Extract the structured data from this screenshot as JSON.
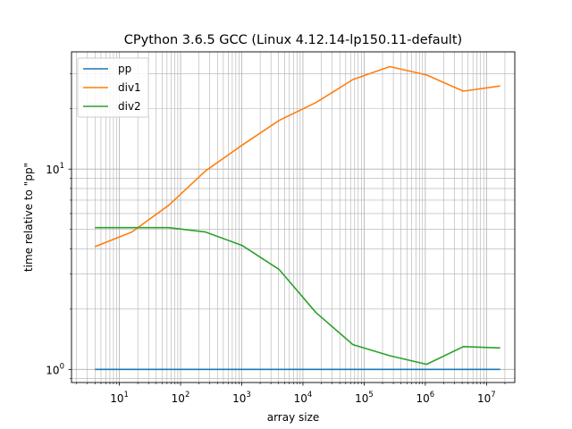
{
  "chart_data": {
    "type": "line",
    "title": "CPython 3.6.5 GCC (Linux 4.12.14-lp150.11-default)",
    "xlabel": "array size",
    "ylabel": "time relative to \"pp\"",
    "xscale": "log",
    "yscale": "log",
    "xlim": [
      1.65,
      29000000
    ],
    "ylim": [
      0.86,
      38.5
    ],
    "grid": "both major and minor",
    "legend_position": "upper-left",
    "x_tick_labels": [
      {
        "value": 10,
        "base": "10",
        "exp": "1"
      },
      {
        "value": 100,
        "base": "10",
        "exp": "2"
      },
      {
        "value": 1000,
        "base": "10",
        "exp": "3"
      },
      {
        "value": 10000,
        "base": "10",
        "exp": "4"
      },
      {
        "value": 100000,
        "base": "10",
        "exp": "5"
      },
      {
        "value": 1000000,
        "base": "10",
        "exp": "6"
      },
      {
        "value": 10000000,
        "base": "10",
        "exp": "7"
      }
    ],
    "y_tick_labels": [
      {
        "value": 1,
        "base": "10",
        "exp": "0"
      },
      {
        "value": 10,
        "base": "10",
        "exp": "1"
      }
    ],
    "x": [
      4,
      16,
      64,
      256,
      1024,
      4096,
      16384,
      65536,
      262144,
      1048576,
      4194304,
      16777216
    ],
    "series": [
      {
        "name": "pp",
        "color": "#1f77b4",
        "values": [
          1,
          1,
          1,
          1,
          1,
          1,
          1,
          1,
          1,
          1,
          1,
          1
        ]
      },
      {
        "name": "div1",
        "color": "#ff7f0e",
        "values": [
          4.1,
          4.85,
          6.6,
          9.8,
          13.2,
          17.5,
          21.5,
          28.0,
          32.5,
          29.5,
          24.5,
          26.0
        ]
      },
      {
        "name": "div2",
        "color": "#2ca02c",
        "values": [
          5.1,
          5.1,
          5.1,
          4.85,
          4.15,
          3.15,
          1.92,
          1.33,
          1.17,
          1.06,
          1.3,
          1.28
        ]
      }
    ]
  }
}
